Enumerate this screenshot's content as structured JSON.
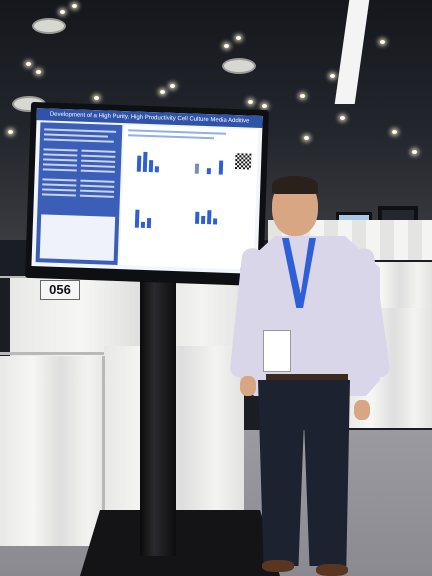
{
  "booth": {
    "number": "056"
  },
  "poster": {
    "title": "Development of a High Purity, High Productivity Cell Culture Media Additive"
  },
  "colors": {
    "poster_blue": "#2f53a8",
    "lanyard_blue": "#2f5fd6",
    "shirt": "#d9d6ea",
    "drape": "#f1f1ef"
  }
}
